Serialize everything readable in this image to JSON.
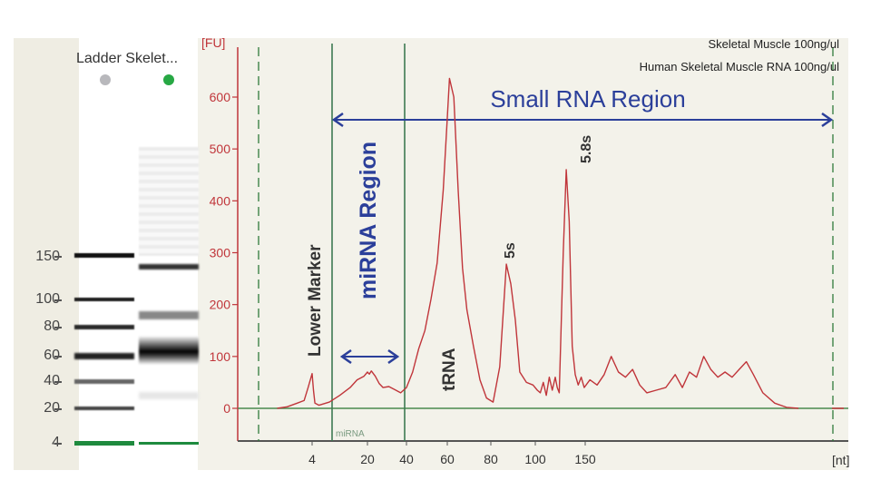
{
  "gel": {
    "lanes": [
      {
        "name": "Ladder",
        "dot_color": "#b8b8bc"
      },
      {
        "name": "Skelet...",
        "dot_color": "#27a844"
      }
    ],
    "lane_title": "Ladder Skelet...",
    "size_labels": [
      "150",
      "100",
      "80",
      "60",
      "40",
      "20",
      "4"
    ],
    "marker_color": "#1e8a3e"
  },
  "chart_data": {
    "type": "line",
    "title": "",
    "ylabel": "[FU]",
    "xlabel": "[nt]",
    "ylim": [
      -55,
      665
    ],
    "yticks": [
      0,
      100,
      200,
      300,
      400,
      500,
      600
    ],
    "xtick_labels": [
      "4",
      "20",
      "40",
      "60",
      "80",
      "100",
      "150"
    ],
    "legend": [
      "Skeletal Muscle 100ng/ul",
      "Human Skeletal Muscle RNA 100ng/ul"
    ],
    "legend_position": "top-right",
    "series": [
      {
        "name": "Skeletal Muscle 100ng/ul",
        "color": "#c0353a",
        "x_units": "approx nt",
        "points": [
          [
            0.5,
            0
          ],
          [
            1.5,
            3
          ],
          [
            2.5,
            10
          ],
          [
            3.2,
            15
          ],
          [
            3.6,
            40
          ],
          [
            4,
            67
          ],
          [
            4.4,
            35
          ],
          [
            4.8,
            10
          ],
          [
            6,
            6
          ],
          [
            9,
            12
          ],
          [
            12,
            25
          ],
          [
            15,
            40
          ],
          [
            17,
            55
          ],
          [
            19,
            62
          ],
          [
            20,
            70
          ],
          [
            21,
            66
          ],
          [
            22,
            72
          ],
          [
            24,
            62
          ],
          [
            26,
            48
          ],
          [
            28,
            40
          ],
          [
            31,
            42
          ],
          [
            34,
            36
          ],
          [
            37,
            30
          ],
          [
            40,
            40
          ],
          [
            43,
            70
          ],
          [
            46,
            115
          ],
          [
            49,
            150
          ],
          [
            52,
            210
          ],
          [
            55,
            280
          ],
          [
            58,
            420
          ],
          [
            60,
            560
          ],
          [
            61,
            636
          ],
          [
            63,
            600
          ],
          [
            65,
            420
          ],
          [
            67,
            270
          ],
          [
            69,
            190
          ],
          [
            72,
            120
          ],
          [
            75,
            55
          ],
          [
            78,
            20
          ],
          [
            81,
            12
          ],
          [
            84,
            80
          ],
          [
            87,
            278
          ],
          [
            89,
            240
          ],
          [
            91,
            170
          ],
          [
            93,
            70
          ],
          [
            96,
            50
          ],
          [
            99,
            45
          ],
          [
            102,
            35
          ],
          [
            105,
            30
          ],
          [
            108,
            50
          ],
          [
            111,
            25
          ],
          [
            114,
            60
          ],
          [
            117,
            35
          ],
          [
            120,
            60
          ],
          [
            122,
            40
          ],
          [
            124,
            30
          ],
          [
            128,
            300
          ],
          [
            131,
            460
          ],
          [
            134,
            360
          ],
          [
            137,
            120
          ],
          [
            140,
            65
          ],
          [
            143,
            45
          ],
          [
            146,
            60
          ],
          [
            149,
            40
          ],
          [
            152,
            55
          ],
          [
            155,
            45
          ],
          [
            158,
            65
          ],
          [
            161,
            100
          ],
          [
            164,
            70
          ],
          [
            167,
            60
          ],
          [
            170,
            75
          ],
          [
            173,
            45
          ],
          [
            176,
            30
          ],
          [
            180,
            35
          ],
          [
            184,
            40
          ],
          [
            188,
            65
          ],
          [
            191,
            40
          ],
          [
            194,
            70
          ],
          [
            197,
            60
          ],
          [
            200,
            100
          ],
          [
            203,
            75
          ],
          [
            206,
            60
          ],
          [
            209,
            70
          ],
          [
            212,
            60
          ],
          [
            215,
            75
          ],
          [
            218,
            90
          ],
          [
            221,
            65
          ],
          [
            225,
            30
          ],
          [
            230,
            10
          ],
          [
            235,
            2
          ],
          [
            240,
            0
          ]
        ]
      }
    ],
    "annotations": {
      "small_rna_region": "Small RNA Region",
      "mirna_region": "miRNA Region",
      "lower_marker": "Lower Marker",
      "trna": "tRNA",
      "peak_5s": "5s",
      "peak_58s": "5.8s",
      "mirna_axis_tag": "miRNA"
    },
    "colors": {
      "axis_y": "#c0353a",
      "axis_x": "#555555",
      "baseline": "#4a8a4e",
      "region_line": "#3d7a52",
      "arrow": "#2b3f9a",
      "dashed": "#2f7a3a"
    }
  }
}
